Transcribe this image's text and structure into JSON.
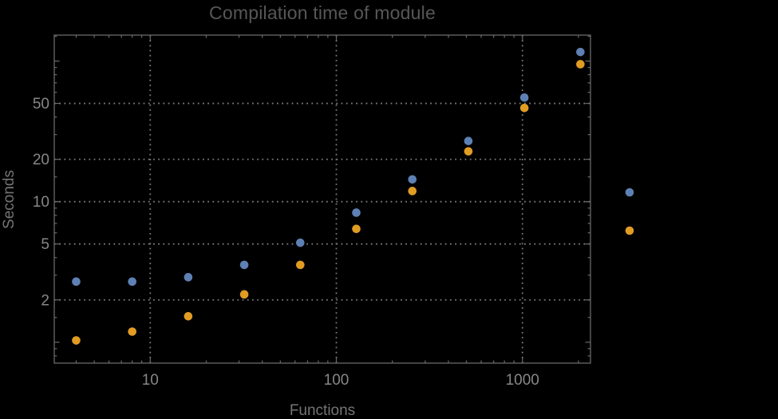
{
  "chart_data": {
    "type": "scatter",
    "title": "Compilation time of module",
    "xlabel": "Functions",
    "ylabel": "Seconds",
    "x_scale": "log",
    "y_scale": "log",
    "x_range": [
      3.05,
      2320
    ],
    "y_range": [
      0.71,
      153
    ],
    "grid": "dotted-major",
    "frame": true,
    "x": [
      4,
      8,
      16,
      32,
      64,
      128,
      256,
      512,
      1024,
      2048
    ],
    "series": [
      {
        "name": "series-1-blue",
        "color": "#5E81B5",
        "values": [
          2.7,
          2.7,
          2.9,
          3.55,
          5.1,
          8.35,
          14.4,
          27.0,
          55.0,
          116.0
        ]
      },
      {
        "name": "series-2-orange",
        "color": "#E19C24",
        "values": [
          1.03,
          1.19,
          1.53,
          2.19,
          3.55,
          6.4,
          11.9,
          22.8,
          46.4,
          95.0
        ]
      }
    ],
    "x_ticks": [
      {
        "value": 10,
        "label": "10"
      },
      {
        "value": 100,
        "label": "100"
      },
      {
        "value": 1000,
        "label": "1000"
      }
    ],
    "y_ticks": [
      {
        "value": 2,
        "label": "2"
      },
      {
        "value": 5,
        "label": "5"
      },
      {
        "value": 10,
        "label": "10"
      },
      {
        "value": 20,
        "label": "20"
      },
      {
        "value": 50,
        "label": "50"
      }
    ],
    "legend_position": "right-outside",
    "legend_markers_only": true
  },
  "colors": {
    "background": "#000000",
    "title_text": "#575757",
    "axis_label_text": "#747474",
    "tick_label_text": "#878787",
    "frame": "#696969",
    "grid": "#7a7a7a"
  }
}
